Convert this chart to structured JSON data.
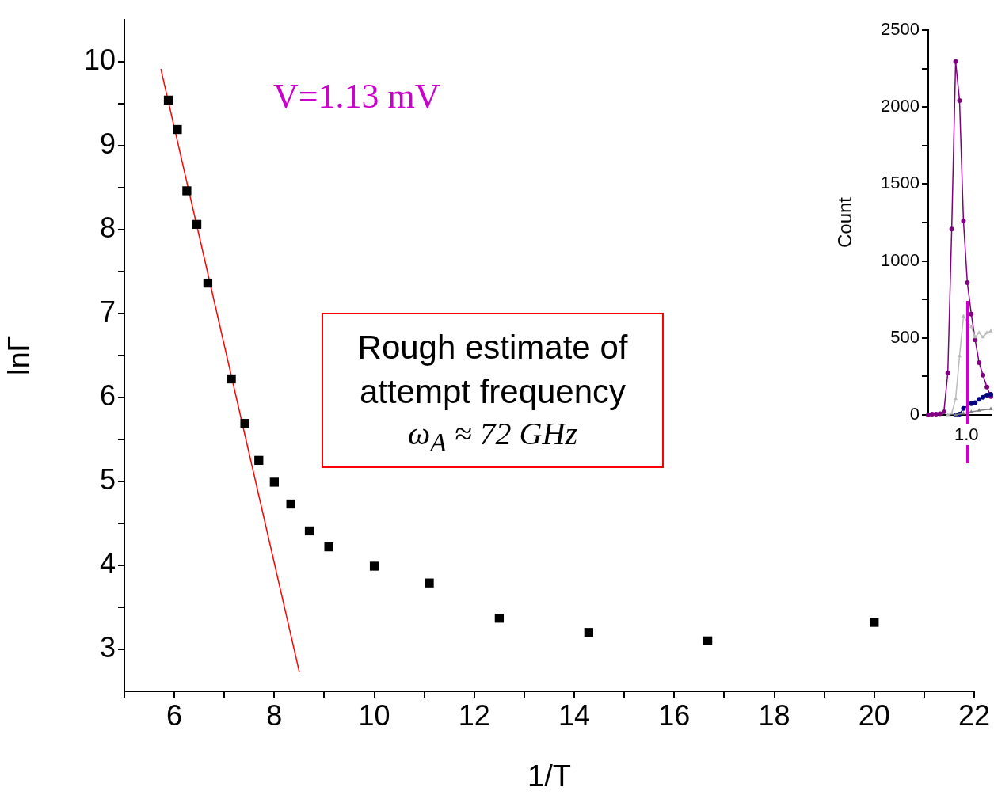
{
  "chart_data": [
    {
      "type": "scatter",
      "xlabel": "1/T",
      "ylabel": "lnΓ",
      "xlim": [
        5,
        22
      ],
      "ylim": [
        2.5,
        10.5
      ],
      "xticks": [
        {
          "value": 5,
          "label": null
        },
        6,
        {
          "value": 7,
          "label": null
        },
        8,
        {
          "value": 9,
          "label": null
        },
        10,
        {
          "value": 11,
          "label": null
        },
        12,
        {
          "value": 13,
          "label": null
        },
        14,
        {
          "value": 15,
          "label": null
        },
        16,
        {
          "value": 17,
          "label": null
        },
        18,
        {
          "value": 19,
          "label": null
        },
        20,
        {
          "value": 21,
          "label": null
        },
        22
      ],
      "yticks": [
        3,
        {
          "value": 3.5,
          "label": null
        },
        4,
        {
          "value": 4.5,
          "label": null
        },
        5,
        {
          "value": 5.5,
          "label": null
        },
        6,
        {
          "value": 6.5,
          "label": null
        },
        7,
        {
          "value": 7.5,
          "label": null
        },
        8,
        {
          "value": 8.5,
          "label": null
        },
        9,
        {
          "value": 9.5,
          "label": null
        },
        10
      ],
      "grid": false,
      "legend": false,
      "series": [
        {
          "type": "scatter",
          "marker": "square",
          "color": "#000000",
          "x": [
            5.88,
            6.06,
            6.25,
            6.45,
            6.67,
            7.14,
            7.41,
            7.69,
            8,
            8.33,
            8.7,
            9.09,
            10,
            11.1,
            12.5,
            14.29,
            16.67,
            20
          ],
          "values": [
            9.54,
            9.19,
            8.46,
            8.06,
            7.36,
            6.22,
            5.69,
            5.25,
            4.99,
            4.73,
            4.41,
            4.22,
            3.99,
            3.79,
            3.37,
            3.2,
            3.1,
            3.32
          ]
        },
        {
          "type": "line",
          "marker": "none",
          "color": "#ff0000",
          "x": [
            5.73,
            8.5
          ],
          "values": [
            9.91,
            2.73
          ]
        }
      ],
      "annotations": [
        "V=1.13 mV",
        "Rough estimate of attempt frequency",
        "ω$_{A}$ ≈ 72 GHz"
      ]
    },
    {
      "type": "line",
      "ylabel": "Count",
      "categories": [
        null,
        null,
        null,
        null,
        null,
        null,
        null,
        null,
        null,
        null,
        null,
        null,
        null,
        null,
        null,
        null,
        null
      ],
      "ylim": [
        0,
        2500
      ],
      "yticks": [
        0,
        {
          "value": 250,
          "label": null
        },
        500,
        {
          "value": 750,
          "label": null
        },
        1000,
        {
          "value": 1250,
          "label": null
        },
        1500,
        {
          "value": 1750,
          "label": null
        },
        2000,
        {
          "value": 2250,
          "label": null
        },
        2500
      ],
      "grid": false,
      "legend": false,
      "series": [
        {
          "color": "#bbbbbb",
          "marker": "triangle",
          "values": [
            null,
            null,
            null,
            null,
            null,
            0,
            10,
            105,
            382,
            640,
            null,
            572,
            506,
            534,
            506,
            534,
            544
          ]
        },
        {
          "color": "#808080",
          "marker": "triangle",
          "values": [
            null,
            null,
            null,
            null,
            null,
            null,
            null,
            0,
            null,
            10,
            null,
            19,
            null,
            29,
            null,
            null,
            38
          ]
        },
        {
          "color": "#000080",
          "marker": "circle",
          "values": [
            null,
            null,
            null,
            null,
            null,
            null,
            null,
            0,
            5,
            42,
            null,
            73,
            80,
            101,
            115,
            128,
            134
          ]
        },
        {
          "color": "#800080",
          "marker": "circle",
          "values": [
            0,
            5,
            5,
            8,
            20,
            273,
            1208,
            2296,
            2042,
            1260,
            859,
            655,
            487,
            340,
            258,
            181,
            120
          ]
        }
      ],
      "annotations": [
        "1.0"
      ]
    }
  ]
}
